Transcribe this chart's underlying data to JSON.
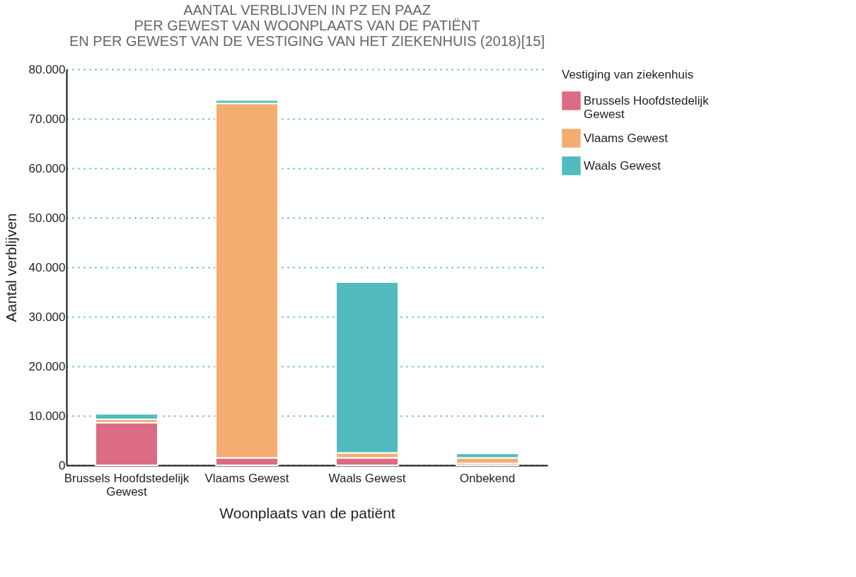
{
  "chart_data": {
    "type": "bar",
    "stacked": true,
    "title": [
      "AANTAL VERBLIJVEN IN PZ EN PAAZ",
      "PER GEWEST VAN WOONPLAATS VAN DE PATIËNT",
      "EN PER GEWEST VAN DE VESTIGING VAN HET ZIEKENHUIS (2018)[15]"
    ],
    "xlabel": "Woonplaats van de patiënt",
    "ylabel": "Aantal verblijven",
    "legend_title": "Vestiging van ziekenhuis",
    "categories": [
      "Brussels Hoofdstedelijk Gewest",
      "Vlaams Gewest",
      "Waals Gewest",
      "Onbekend"
    ],
    "series": [
      {
        "name": "Brussels Hoofdstedelijk Gewest",
        "color": "#dc6b84",
        "values": [
          8600,
          1500,
          1500,
          400
        ]
      },
      {
        "name": "Vlaams Gewest",
        "color": "#f5ac70",
        "values": [
          700,
          71600,
          1000,
          1100
        ]
      },
      {
        "name": "Waals Gewest",
        "color": "#51bbbe",
        "values": [
          1100,
          700,
          34500,
          900
        ]
      }
    ],
    "ylim": [
      0,
      80000
    ],
    "yticks": [
      0,
      {
        "value": 10000,
        "label": "10.000"
      },
      {
        "value": 20000,
        "label": "20.000"
      },
      {
        "value": 30000,
        "label": "30.000"
      },
      {
        "value": 40000,
        "label": "40.000"
      },
      {
        "value": 50000,
        "label": "50.000"
      },
      {
        "value": 60000,
        "label": "60.000"
      },
      {
        "value": 70000,
        "label": "70.000"
      },
      {
        "value": 80000,
        "label": "80.000"
      }
    ],
    "grid": "y",
    "legend": "right"
  }
}
